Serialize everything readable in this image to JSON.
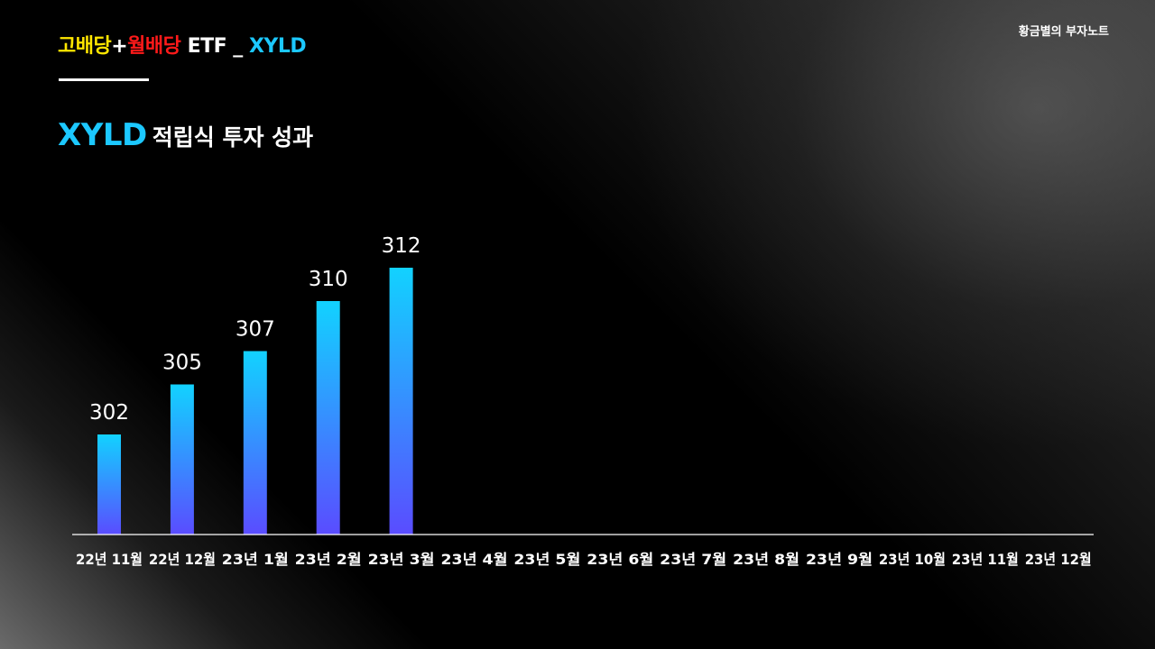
{
  "header": {
    "title_part1": "고배당",
    "title_plus": "+",
    "title_part2": "월배당",
    "title_part3": " ETF _ ",
    "title_part4": "XYLD",
    "brand": "황금별의 부자노트"
  },
  "subtitle": {
    "ticker": "XYLD",
    "text": "적립식 투자 성과"
  },
  "colors": {
    "bar_top": "#12d2ff",
    "bar_bottom": "#5a4cff",
    "axis": "#ffffff",
    "label": "#ffffff"
  },
  "chart_data": {
    "type": "bar",
    "title": "",
    "xlabel": "",
    "ylabel": "",
    "grid": false,
    "ylim": [
      0,
      320
    ],
    "categories": [
      "22년 11월",
      "22년 12월",
      "23년 1월",
      "23년 2월",
      "23년 3월",
      "23년 4월",
      "23년 5월",
      "23년 6월",
      "23년 7월",
      "23년 8월",
      "23년 9월",
      "23년 10월",
      "23년 11월",
      "23년 12월"
    ],
    "series": [
      {
        "values": [
          302,
          305,
          307,
          310,
          312,
          null,
          null,
          null,
          null,
          null,
          null,
          null,
          null,
          null
        ]
      }
    ]
  }
}
